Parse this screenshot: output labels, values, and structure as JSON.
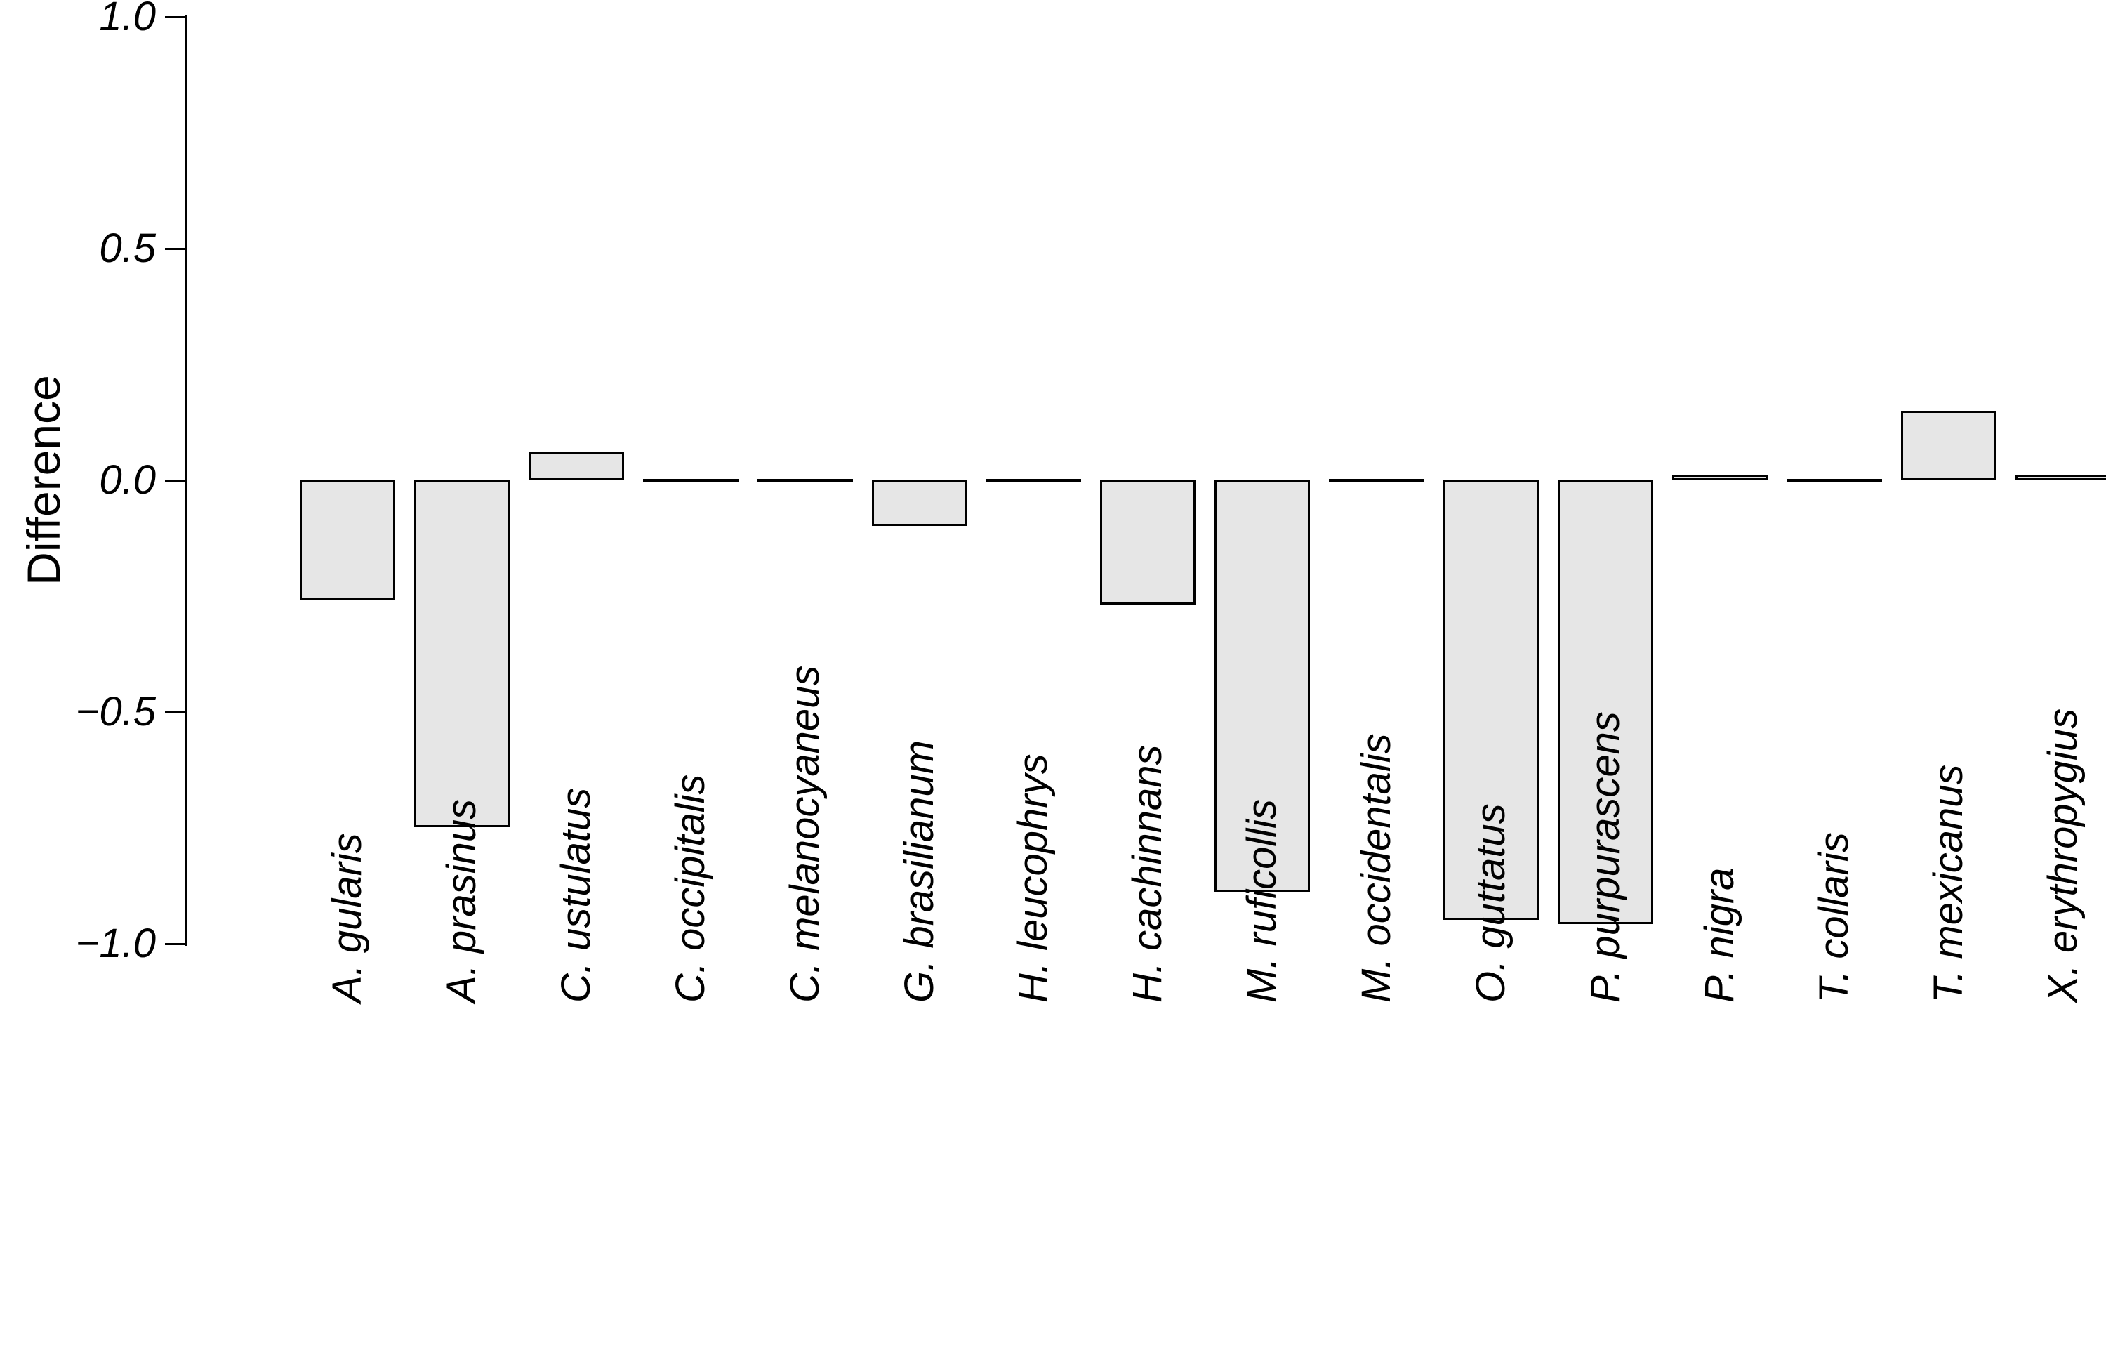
{
  "figure": {
    "background": "#ffffff",
    "text_color": "#000000"
  },
  "chart_data": {
    "type": "bar",
    "title": "",
    "xlabel": "",
    "ylabel": "Difference",
    "categories": [
      "A. gularis",
      "A. prasinus",
      "C. ustulatus",
      "C. occipitalis",
      "C. melanocyaneus",
      "G. brasilianum",
      "H. leucophrys",
      "H. cachinnans",
      "M. ruficollis",
      "M. occidentalis",
      "O. guttatus",
      "P. purpurascens",
      "P. nigra",
      "T. collaris",
      "T. mexicanus",
      "X. erythropygius"
    ],
    "values": [
      -0.26,
      -0.75,
      0.06,
      0.0,
      0.0,
      -0.1,
      0.0,
      -0.27,
      -0.89,
      0.0,
      -0.95,
      -0.96,
      0.01,
      0.0,
      0.15,
      0.01
    ],
    "ylim": [
      -1.0,
      1.0
    ],
    "yticks": [
      {
        "label": "1.0",
        "value": 1.0
      },
      {
        "label": "0.5",
        "value": 0.5
      },
      {
        "label": "0.0",
        "value": 0.0
      },
      {
        "label": "−0.5",
        "value": -0.5
      },
      {
        "label": "−1.0",
        "value": -1.0
      }
    ],
    "grid": false,
    "legend": "none",
    "bar_fill": "#e6e6e6",
    "bar_stroke": "#000000",
    "axis_color": "#000000",
    "tick_label_style": "italic",
    "category_label_style": "italic"
  }
}
